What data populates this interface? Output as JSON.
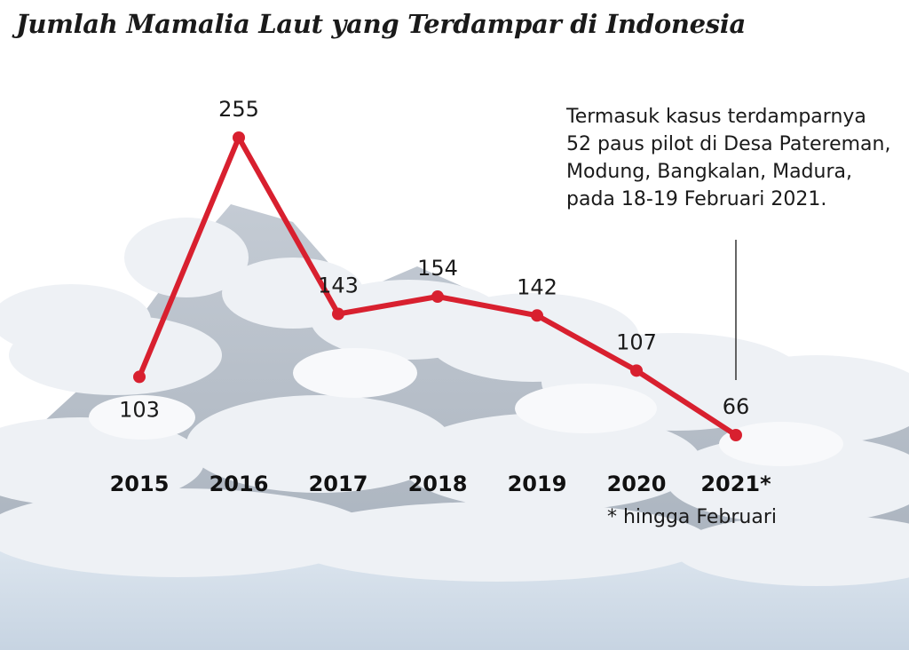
{
  "header": {
    "title": "Jumlah Mamalia Laut yang Terdampar di Indonesia"
  },
  "annotation": {
    "lines": [
      "Termasuk kasus terdamparnya",
      "52 paus pilot di Desa Patereman,",
      "Modung, Bangkalan, Madura,",
      "pada 18-19 Februari 2021."
    ],
    "target_category": "2021*"
  },
  "footnote": "* hingga Februari",
  "colors": {
    "line": "#d8202f",
    "text": "#1a1a1a",
    "background_cloud": "#e6eaef",
    "background_mountain": "#b9c1cb"
  },
  "chart_data": {
    "type": "line",
    "categories": [
      "2015",
      "2016",
      "2017",
      "2018",
      "2019",
      "2020",
      "2021*"
    ],
    "values": [
      103,
      255,
      143,
      154,
      142,
      107,
      66
    ],
    "value_labels": [
      "103",
      "255",
      "143",
      "154",
      "142",
      "107",
      "66"
    ],
    "title": "Jumlah Mamalia Laut yang Terdampar di Indonesia",
    "xlabel": "",
    "ylabel": "",
    "grid": false,
    "legend": "none"
  }
}
